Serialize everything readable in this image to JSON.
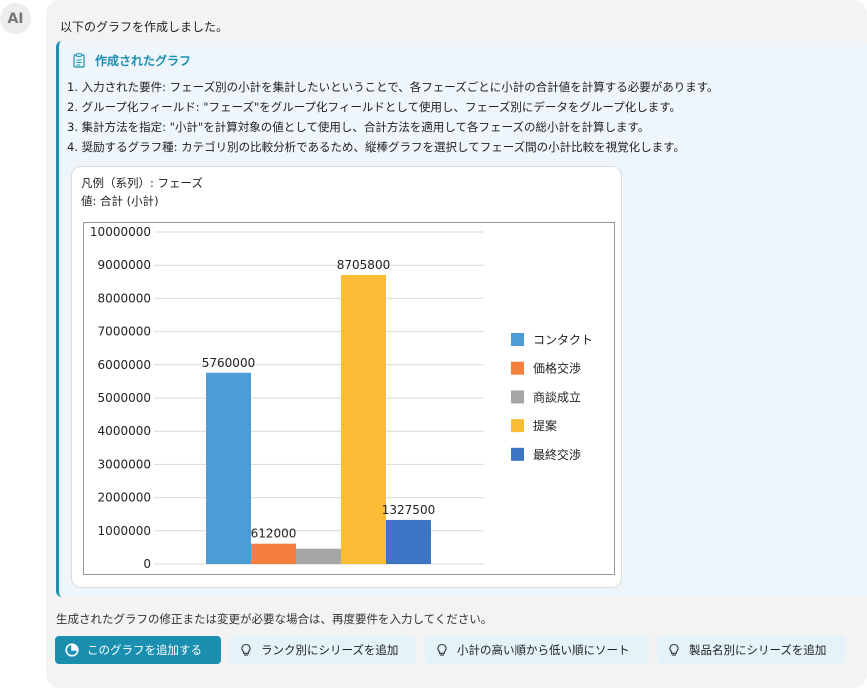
{
  "avatar": {
    "label": "AI"
  },
  "intro_text": "以下のグラフを作成しました。",
  "panel": {
    "title": "作成されたグラフ",
    "steps": [
      "1. 入力された要件: フェーズ別の小計を集計したいということで、各フェーズごとに小計の合計値を計算する必要があります。",
      "2. グループ化フィールド: \"フェーズ\"をグループ化フィールドとして使用し、フェーズ別にデータをグループ化します。",
      "3. 集計方法を指定: \"小計\"を計算対象の値として使用し、合計方法を適用して各フェーズの総小計を計算します。",
      "4. 奨励するグラフ種: カテゴリ別の比較分析であるため、縦棒グラフを選択してフェーズ間の小計比較を視覚化します。"
    ]
  },
  "chart_card": {
    "legend_line": "凡例（系列）: フェーズ",
    "value_line": "値: 合計 (小計)"
  },
  "chart_data": {
    "type": "bar",
    "categories": [
      ""
    ],
    "series": [
      {
        "name": "コンタクト",
        "values": [
          5760000
        ],
        "color": "#4e9cd5",
        "label": "5760000"
      },
      {
        "name": "価格交渉",
        "values": [
          612000
        ],
        "color": "#f57f3c",
        "label": "612000"
      },
      {
        "name": "商談成立",
        "values": [
          460000
        ],
        "color": "#a5a5a5",
        "label": ""
      },
      {
        "name": "提案",
        "values": [
          8705800
        ],
        "color": "#fbbd35",
        "label": "8705800"
      },
      {
        "name": "最終交渉",
        "values": [
          1327500
        ],
        "color": "#3d74c3",
        "label": "1327500"
      }
    ],
    "ylim": [
      0,
      10000000
    ],
    "yticks": [
      "0",
      "1000000",
      "2000000",
      "3000000",
      "4000000",
      "5000000",
      "6000000",
      "7000000",
      "8000000",
      "9000000",
      "10000000"
    ],
    "grid": true,
    "legend_position": "right",
    "title": "",
    "xlabel": "",
    "ylabel": ""
  },
  "footer_text": "生成されたグラフの修正または変更が必要な場合は、再度要件を入力してください。",
  "buttons": {
    "add_chart": "このグラフを追加する",
    "suggestions": [
      "ランク別にシリーズを追加",
      "小計の高い順から低い順にソート",
      "製品名別にシリーズを追加"
    ]
  }
}
